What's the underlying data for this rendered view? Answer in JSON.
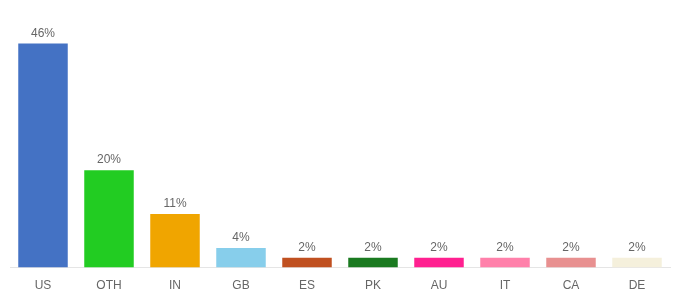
{
  "chart_data": {
    "type": "bar",
    "categories": [
      "US",
      "OTH",
      "IN",
      "GB",
      "ES",
      "PK",
      "AU",
      "IT",
      "CA",
      "DE"
    ],
    "values": [
      46,
      20,
      11,
      4,
      2,
      2,
      2,
      2,
      2,
      2
    ],
    "value_labels": [
      "46%",
      "20%",
      "11%",
      "4%",
      "2%",
      "2%",
      "2%",
      "2%",
      "2%",
      "2%"
    ],
    "colors": [
      "#4472c4",
      "#22cc22",
      "#f0a500",
      "#87ceeb",
      "#c05020",
      "#1a7a20",
      "#ff2090",
      "#ff80aa",
      "#e89090",
      "#f5f0dc"
    ],
    "ylim": [
      0,
      50
    ],
    "grid": false,
    "data_labels": true,
    "tick_labels": "x"
  }
}
